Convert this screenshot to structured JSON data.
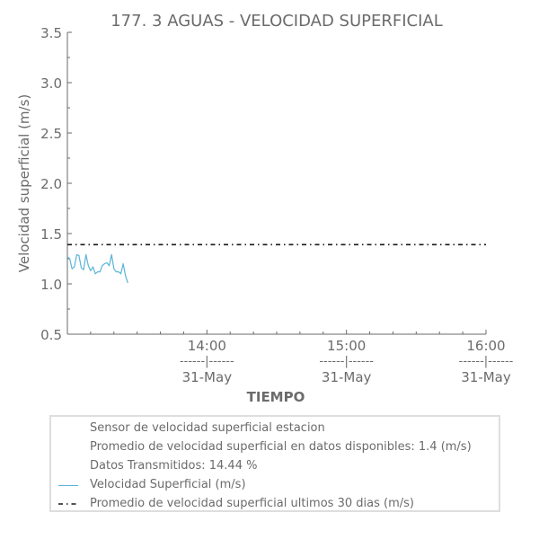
{
  "chart_data": {
    "type": "line",
    "title": "177. 3 AGUAS - VELOCIDAD SUPERFICIAL",
    "xlabel": "TIEMPO",
    "ylabel": "Velocidad superficial (m/s)",
    "ylim": [
      0.5,
      3.5
    ],
    "xlim": [
      "13:00",
      "16:00"
    ],
    "yticks": [
      "0.5",
      "1.0",
      "1.5",
      "2.0",
      "2.5",
      "3.0",
      "3.5"
    ],
    "xticks": [
      {
        "time": "14:00",
        "sep": "------|------",
        "date": "31-May"
      },
      {
        "time": "15:00",
        "sep": "------|------",
        "date": "31-May"
      },
      {
        "time": "16:00",
        "sep": "------|------",
        "date": "31-May"
      }
    ],
    "series": [
      {
        "name": "Velocidad Superficial (m/s)",
        "color": "#5ab4d8",
        "style": "solid",
        "x": [
          "13:00",
          "13:01",
          "13:02",
          "13:03",
          "13:04",
          "13:05",
          "13:06",
          "13:07",
          "13:08",
          "13:09",
          "13:10",
          "13:11",
          "13:12",
          "13:13",
          "13:14",
          "13:15",
          "13:16",
          "13:17",
          "13:18",
          "13:19",
          "13:20",
          "13:21",
          "13:22",
          "13:23",
          "13:24",
          "13:25",
          "13:26"
        ],
        "values": [
          1.27,
          1.25,
          1.15,
          1.17,
          1.29,
          1.28,
          1.16,
          1.14,
          1.29,
          1.18,
          1.13,
          1.17,
          1.1,
          1.12,
          1.12,
          1.18,
          1.2,
          1.21,
          1.18,
          1.29,
          1.15,
          1.12,
          1.12,
          1.1,
          1.2,
          1.08,
          1.01
        ]
      },
      {
        "name": "Promedio de velocidad superficial ultimos 30 dias (m/s)",
        "color": "#1a1a1a",
        "style": "dashdot",
        "x": [
          "13:00",
          "16:00"
        ],
        "values": [
          1.39,
          1.39
        ]
      }
    ],
    "legend": {
      "placement": "bottom",
      "info_lines": [
        "Sensor de velocidad superficial estacion",
        "Promedio de velocidad superficial en datos disponibles: 1.4 (m/s)",
        "Datos Transmitidos: 14.44 %"
      ],
      "entries": [
        "Velocidad Superficial (m/s)",
        "Promedio de velocidad superficial ultimos 30 dias (m/s)"
      ]
    },
    "grid": false
  }
}
